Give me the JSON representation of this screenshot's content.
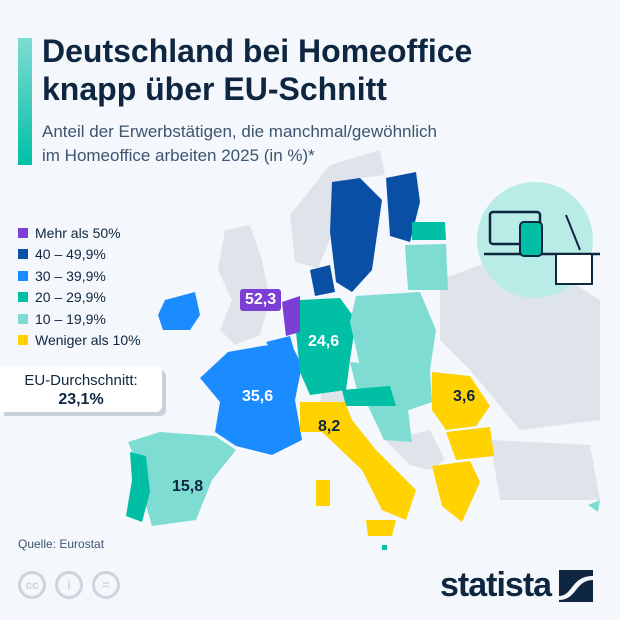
{
  "header": {
    "title_line1": "Deutschland bei Homeoffice",
    "title_line2": "knapp über EU-Schnitt",
    "subtitle_line1": "Anteil der Erwerbstätigen, die manchmal/gewöhnlich",
    "subtitle_line2": "im Homeoffice arbeiten 2025 (in %)*"
  },
  "legend": [
    {
      "label": "Mehr als 50%",
      "color": "#7b3fd6"
    },
    {
      "label": "40 – 49,9%",
      "color": "#0a4fa6"
    },
    {
      "label": "30 – 39,9%",
      "color": "#1a8cff"
    },
    {
      "label": "20 – 29,9%",
      "color": "#00bfa5"
    },
    {
      "label": "10 – 19,9%",
      "color": "#7fdcd3"
    },
    {
      "label": "Weniger als 10%",
      "color": "#ffd200"
    }
  ],
  "eu_average": {
    "label": "EU-Durchschnitt:",
    "value": "23,1%"
  },
  "map_labels": {
    "netherlands": "52,3",
    "germany": "24,6",
    "france": "35,6",
    "italy": "8,2",
    "romania": "3,6",
    "spain": "15,8"
  },
  "footer": {
    "source": "Quelle: Eurostat",
    "brand": "statista",
    "cc_icons": [
      "cc-icon",
      "by-icon",
      "nd-icon"
    ]
  }
}
